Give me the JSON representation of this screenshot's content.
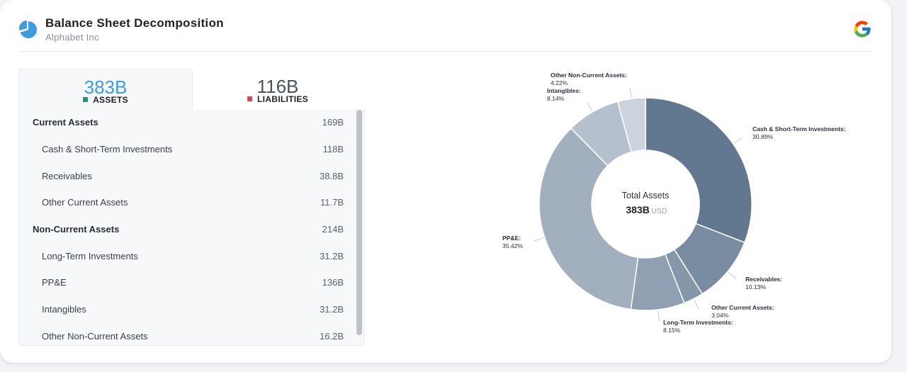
{
  "header": {
    "title": "Balance Sheet Decomposition",
    "subtitle": "Alphabet Inc",
    "app_icon": "pie-chart-icon",
    "brand_icon": "google-icon"
  },
  "tabs": [
    {
      "value": "383B",
      "label": "ASSETS",
      "color": "#1a9b78"
    },
    {
      "value": "116B",
      "label": "LIABILITIES",
      "color": "#e04848"
    }
  ],
  "rows": [
    {
      "label": "Current Assets",
      "value": "169B",
      "group": true
    },
    {
      "label": "Cash & Short-Term Investments",
      "value": "118B",
      "group": false
    },
    {
      "label": "Receivables",
      "value": "38.8B",
      "group": false
    },
    {
      "label": "Other Current Assets",
      "value": "11.7B",
      "group": false
    },
    {
      "label": "Non-Current Assets",
      "value": "214B",
      "group": true
    },
    {
      "label": "Long-Term Investments",
      "value": "31.2B",
      "group": false
    },
    {
      "label": "PP&E",
      "value": "136B",
      "group": false
    },
    {
      "label": "Intangibles",
      "value": "31.2B",
      "group": false
    },
    {
      "label": "Other Non-Current Assets",
      "value": "16.2B",
      "group": false
    }
  ],
  "chart_data": {
    "type": "pie",
    "center": {
      "title": "Total Assets",
      "value": "383B",
      "unit": "USD"
    },
    "slices": [
      {
        "name": "Cash & Short-Term Investments",
        "percent": 30.89,
        "label": "30.89%",
        "color": "#627790"
      },
      {
        "name": "Receivables",
        "percent": 10.13,
        "label": "10.13%",
        "color": "#7a8ca1"
      },
      {
        "name": "Other Current Assets",
        "percent": 3.04,
        "label": "3.04%",
        "color": "#8597ab"
      },
      {
        "name": "Long-Term Investments",
        "percent": 8.15,
        "label": "8.15%",
        "color": "#919fb3"
      },
      {
        "name": "PP&E",
        "percent": 35.42,
        "label": "35.42%",
        "color": "#a2afbf"
      },
      {
        "name": "Intangibles",
        "percent": 8.14,
        "label": "8.14%",
        "color": "#b5c0ce"
      },
      {
        "name": "Other Non-Current Assets",
        "percent": 4.22,
        "label": "4.22%",
        "color": "#cbd4de"
      }
    ]
  }
}
